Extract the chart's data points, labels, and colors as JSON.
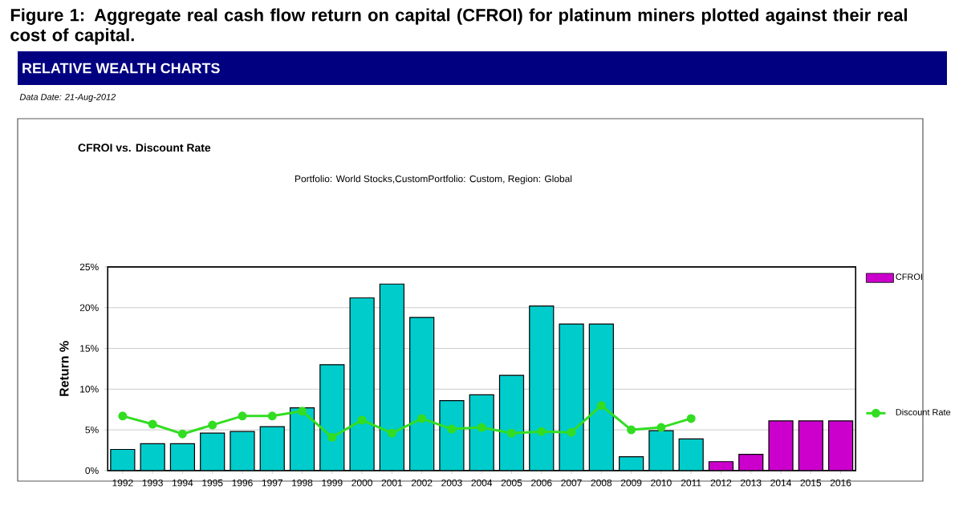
{
  "chart_data": {
    "type": "bar",
    "title": "Figure 1: Aggregate real cash flow return on capital (CFROI) for platinum miners plotted against their real cost of capital.",
    "subtitle": "CFROI vs. Discount Rate",
    "annotations": [
      "RELATIVE WEALTH CHARTS",
      "Data Date: 21-Aug-2012",
      "Portfolio: World Stocks,CustomPortfolio: Custom, Region: Global"
    ],
    "ylabel": "Return %",
    "categories": [
      "1992",
      "1993",
      "1994",
      "1995",
      "1996",
      "1997",
      "1998",
      "1999",
      "2000",
      "2001",
      "2002",
      "2003",
      "2004",
      "2005",
      "2006",
      "2007",
      "2008",
      "2009",
      "2010",
      "2011",
      "2012",
      "2013",
      "2014",
      "2015",
      "2016"
    ],
    "series": [
      {
        "name": "CFROI",
        "type": "bar",
        "color": "#cc00cc",
        "values": [
          2.6,
          3.3,
          3.3,
          4.6,
          4.8,
          5.4,
          7.7,
          13.0,
          21.2,
          22.9,
          18.8,
          8.6,
          9.3,
          11.7,
          20.2,
          18.0,
          18.0,
          1.7,
          4.9,
          3.9,
          1.1,
          2.0,
          6.1,
          6.1,
          6.1
        ],
        "colors": [
          "#00cccc",
          "#00cccc",
          "#00cccc",
          "#00cccc",
          "#00cccc",
          "#00cccc",
          "#00cccc",
          "#00cccc",
          "#00cccc",
          "#00cccc",
          "#00cccc",
          "#00cccc",
          "#00cccc",
          "#00cccc",
          "#00cccc",
          "#00cccc",
          "#00cccc",
          "#00cccc",
          "#00cccc",
          "#00cccc",
          "#cc00cc",
          "#cc00cc",
          "#cc00cc",
          "#cc00cc",
          "#cc00cc"
        ]
      },
      {
        "name": "Discount Rate",
        "type": "line",
        "color": "#33dd22",
        "marker": "circle",
        "line_style": "solid",
        "values": [
          6.7,
          5.7,
          4.5,
          5.6,
          6.7,
          6.7,
          7.3,
          4.1,
          6.2,
          4.6,
          6.4,
          5.1,
          5.3,
          4.6,
          4.8,
          4.7,
          8.0,
          5.0,
          5.3,
          6.4,
          null,
          null,
          null,
          null,
          null
        ]
      }
    ],
    "ylim": [
      0,
      25
    ],
    "yticks": [
      {
        "value": 0,
        "label": "0%"
      },
      {
        "value": 5,
        "label": "5%"
      },
      {
        "value": 10,
        "label": "10%"
      },
      {
        "value": 15,
        "label": "15%"
      },
      {
        "value": 20,
        "label": "20%"
      },
      {
        "value": 25,
        "label": "25%"
      }
    ],
    "grid": "y",
    "legend": "right"
  }
}
